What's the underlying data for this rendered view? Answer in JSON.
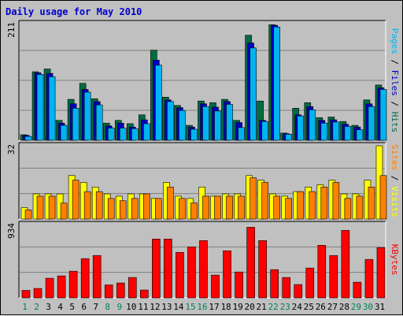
{
  "chart_data": {
    "type": "bar",
    "title": "Daily usage for May 2010",
    "days": [
      "1",
      "2",
      "3",
      "4",
      "5",
      "6",
      "7",
      "8",
      "9",
      "10",
      "11",
      "12",
      "13",
      "14",
      "15",
      "16",
      "17",
      "18",
      "19",
      "20",
      "21",
      "22",
      "23",
      "24",
      "25",
      "26",
      "27",
      "28",
      "29",
      "30",
      "31"
    ],
    "weekend_days": [
      "1",
      "2",
      "8",
      "9",
      "15",
      "16",
      "22",
      "23",
      "29",
      "30"
    ],
    "colors": {
      "pages": "#00b4f0",
      "files": "#0000c0",
      "hits": "#006c40",
      "visits": "#ffff00",
      "sites": "#ff8000",
      "kbytes": "#ff0000",
      "weekday_tick": "#000000",
      "weekend_tick": "#00805c",
      "title": "#0000cc",
      "grid": "#808080",
      "background": "#c0c0c0"
    },
    "panels": [
      {
        "key": "top",
        "max_label": "211",
        "max": 211,
        "ylabel_parts": [
          {
            "text": "Pages",
            "color": "#00b4f0"
          },
          {
            "text": " / ",
            "color": "#000000"
          },
          {
            "text": "Files",
            "color": "#0000c0"
          },
          {
            "text": " / ",
            "color": "#000000"
          },
          {
            "text": "Hits",
            "color": "#006c40"
          }
        ],
        "series": [
          {
            "key": "hits",
            "values": [
              10,
              124,
              129,
              36,
              74,
              103,
              75,
              31,
              36,
              30,
              46,
              163,
              78,
              63,
              27,
              71,
              68,
              74,
              36,
              190,
              71,
              209,
              13,
              58,
              68,
              41,
              42,
              34,
              27,
              73,
              100
            ]
          },
          {
            "key": "files",
            "values": [
              9,
              122,
              121,
              31,
              66,
              92,
              70,
              26,
              31,
              24,
              37,
              145,
              73,
              59,
              24,
              66,
              60,
              70,
              32,
              176,
              36,
              208,
              12,
              46,
              61,
              36,
              37,
              29,
              24,
              66,
              95
            ]
          },
          {
            "key": "pages",
            "values": [
              7,
              119,
              115,
              27,
              58,
              87,
              64,
              22,
              22,
              21,
              30,
              136,
              70,
              54,
              20,
              61,
              53,
              65,
              23,
              167,
              34,
              205,
              11,
              44,
              55,
              31,
              33,
              25,
              19,
              61,
              92
            ]
          }
        ]
      },
      {
        "key": "middle",
        "max_label": "32",
        "max": 32,
        "ylabel_parts": [
          {
            "text": "Sites",
            "color": "#ff8000"
          },
          {
            "text": " / ",
            "color": "#000000"
          },
          {
            "text": "Visits",
            "color": "#ffff00"
          }
        ],
        "series": [
          {
            "key": "visits",
            "values": [
              5,
              11,
              11,
              11,
              19,
              16,
              14,
              11,
              10,
              11,
              11,
              9,
              16,
              10,
              9,
              14,
              10,
              11,
              11,
              19,
              17,
              11,
              10,
              12,
              14,
              15,
              17,
              11,
              11,
              17,
              32
            ]
          },
          {
            "key": "sites",
            "values": [
              4,
              10,
              10,
              7,
              17,
              12,
              12,
              9,
              8,
              9,
              11,
              9,
              14,
              9,
              7,
              10,
              10,
              10,
              10,
              18,
              16,
              10,
              9,
              12,
              12,
              14,
              16,
              9,
              10,
              14,
              19
            ]
          }
        ]
      },
      {
        "key": "bottom",
        "max_label": "934",
        "max": 934,
        "ylabel_parts": [
          {
            "text": "KBytes",
            "color": "#ff0000"
          }
        ],
        "series": [
          {
            "key": "kbytes",
            "values": [
              95,
              120,
              250,
              280,
              340,
              500,
              540,
              165,
              190,
              260,
              100,
              750,
              750,
              580,
              650,
              730,
              290,
              600,
              330,
              900,
              730,
              360,
              260,
              170,
              380,
              670,
              540,
              860,
              200,
              490,
              640
            ]
          }
        ]
      }
    ]
  }
}
